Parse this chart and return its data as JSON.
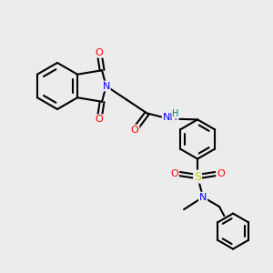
{
  "bg_color": "#ececec",
  "bond_color": "#000000",
  "bond_width": 1.5,
  "atom_colors": {
    "N": "#0000ff",
    "O": "#ff0000",
    "S": "#cccc00",
    "H": "#008080",
    "C": "#000000"
  },
  "font_size": 8,
  "font_size_small": 7
}
